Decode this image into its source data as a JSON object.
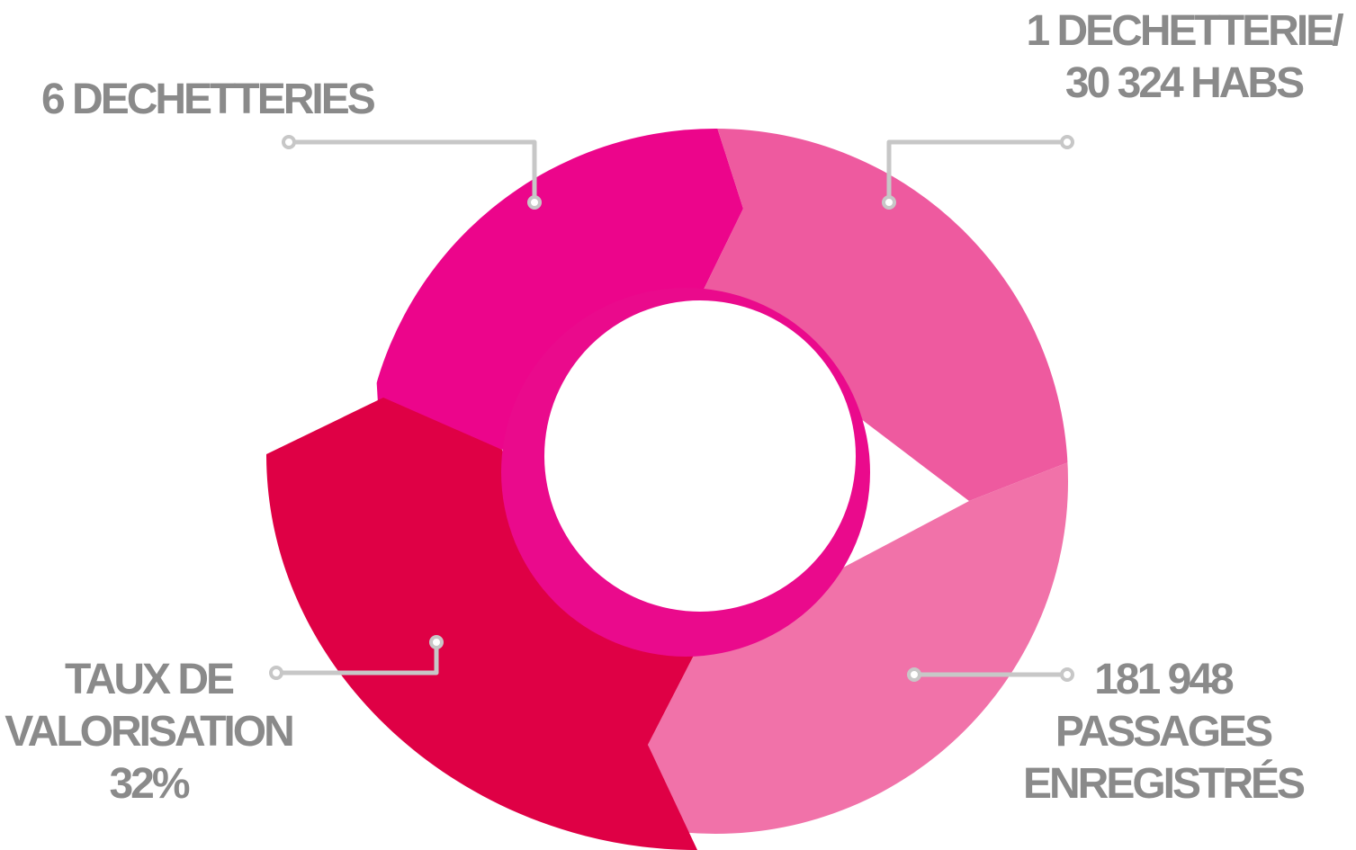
{
  "colors": {
    "label_text": "#8a8a8a",
    "connector": "#c7c7c7",
    "segment_top_left": "#ec058b",
    "segment_top_right": "#ee5a9f",
    "segment_bottom_right": "#f172a9",
    "segment_bottom_left": "#df0045",
    "inner_ring": "#ea0a8c",
    "center": "#ffffff"
  },
  "labels": {
    "top_left": {
      "line1": "6 DECHETTERIES"
    },
    "top_right": {
      "line1": "1 DECHETTERIE/",
      "line2": "30 324 HABS"
    },
    "bottom_left": {
      "line1": "TAUX DE",
      "line2": "VALORISATION",
      "line3": "32%"
    },
    "bottom_right": {
      "line1": "181 948",
      "line2": "PASSAGES",
      "line3": "ENREGISTRÉS"
    }
  }
}
